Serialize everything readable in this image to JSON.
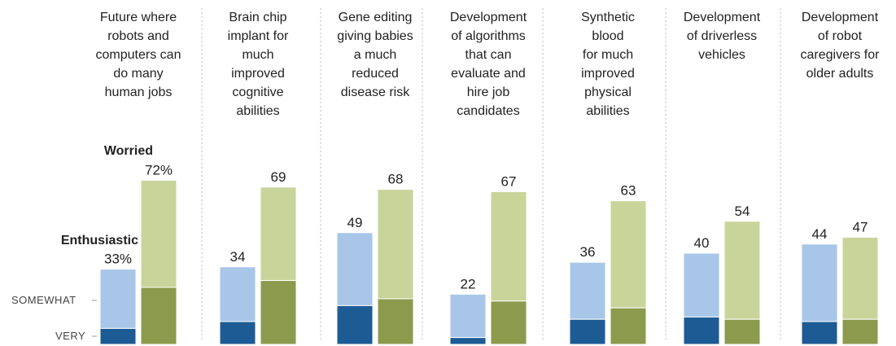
{
  "chart_data": {
    "type": "bar",
    "categories": [
      [
        "Future where",
        "robots and",
        "computers can",
        "do many",
        "human jobs"
      ],
      [
        "Brain chip",
        "implant for",
        "much",
        "improved",
        "cognitive",
        "abilities"
      ],
      [
        "Gene editing",
        "giving babies",
        "a much",
        "reduced",
        "disease risk"
      ],
      [
        "Development",
        "of algorithms",
        "that can",
        "evaluate and",
        "hire job",
        "candidates"
      ],
      [
        "Synthetic",
        "blood",
        "for much",
        "improved",
        "physical",
        "abilities"
      ],
      [
        "Development",
        "of driverless",
        "vehicles"
      ],
      [
        "Development",
        "of robot",
        "caregivers for",
        "older adults"
      ]
    ],
    "series": [
      {
        "name": "Enthusiastic",
        "values": [
          33,
          34,
          49,
          22,
          36,
          40,
          44
        ],
        "very": [
          7,
          10,
          17,
          3,
          11,
          12,
          10
        ],
        "value_labels": [
          "33%",
          "34",
          "49",
          "22",
          "36",
          "40",
          "44"
        ]
      },
      {
        "name": "Worried",
        "values": [
          72,
          69,
          68,
          67,
          63,
          54,
          47
        ],
        "very": [
          25,
          28,
          20,
          19,
          16,
          11,
          11
        ],
        "value_labels": [
          "72%",
          "69",
          "68",
          "67",
          "63",
          "54",
          "47"
        ]
      }
    ],
    "axis_labels": {
      "somewhat": "SOMEWHAT",
      "very": "VERY"
    },
    "colors": {
      "enthusiastic_somewhat": "#a7c6e8",
      "enthusiastic_very": "#1d5b94",
      "worried_somewhat": "#c9d49a",
      "worried_very": "#8c9a4d",
      "bar_border": "#ffffff",
      "divider": "#b9b9b9"
    },
    "ylim": [
      0,
      100
    ],
    "grid": false,
    "legend": "inline labels on first column"
  }
}
